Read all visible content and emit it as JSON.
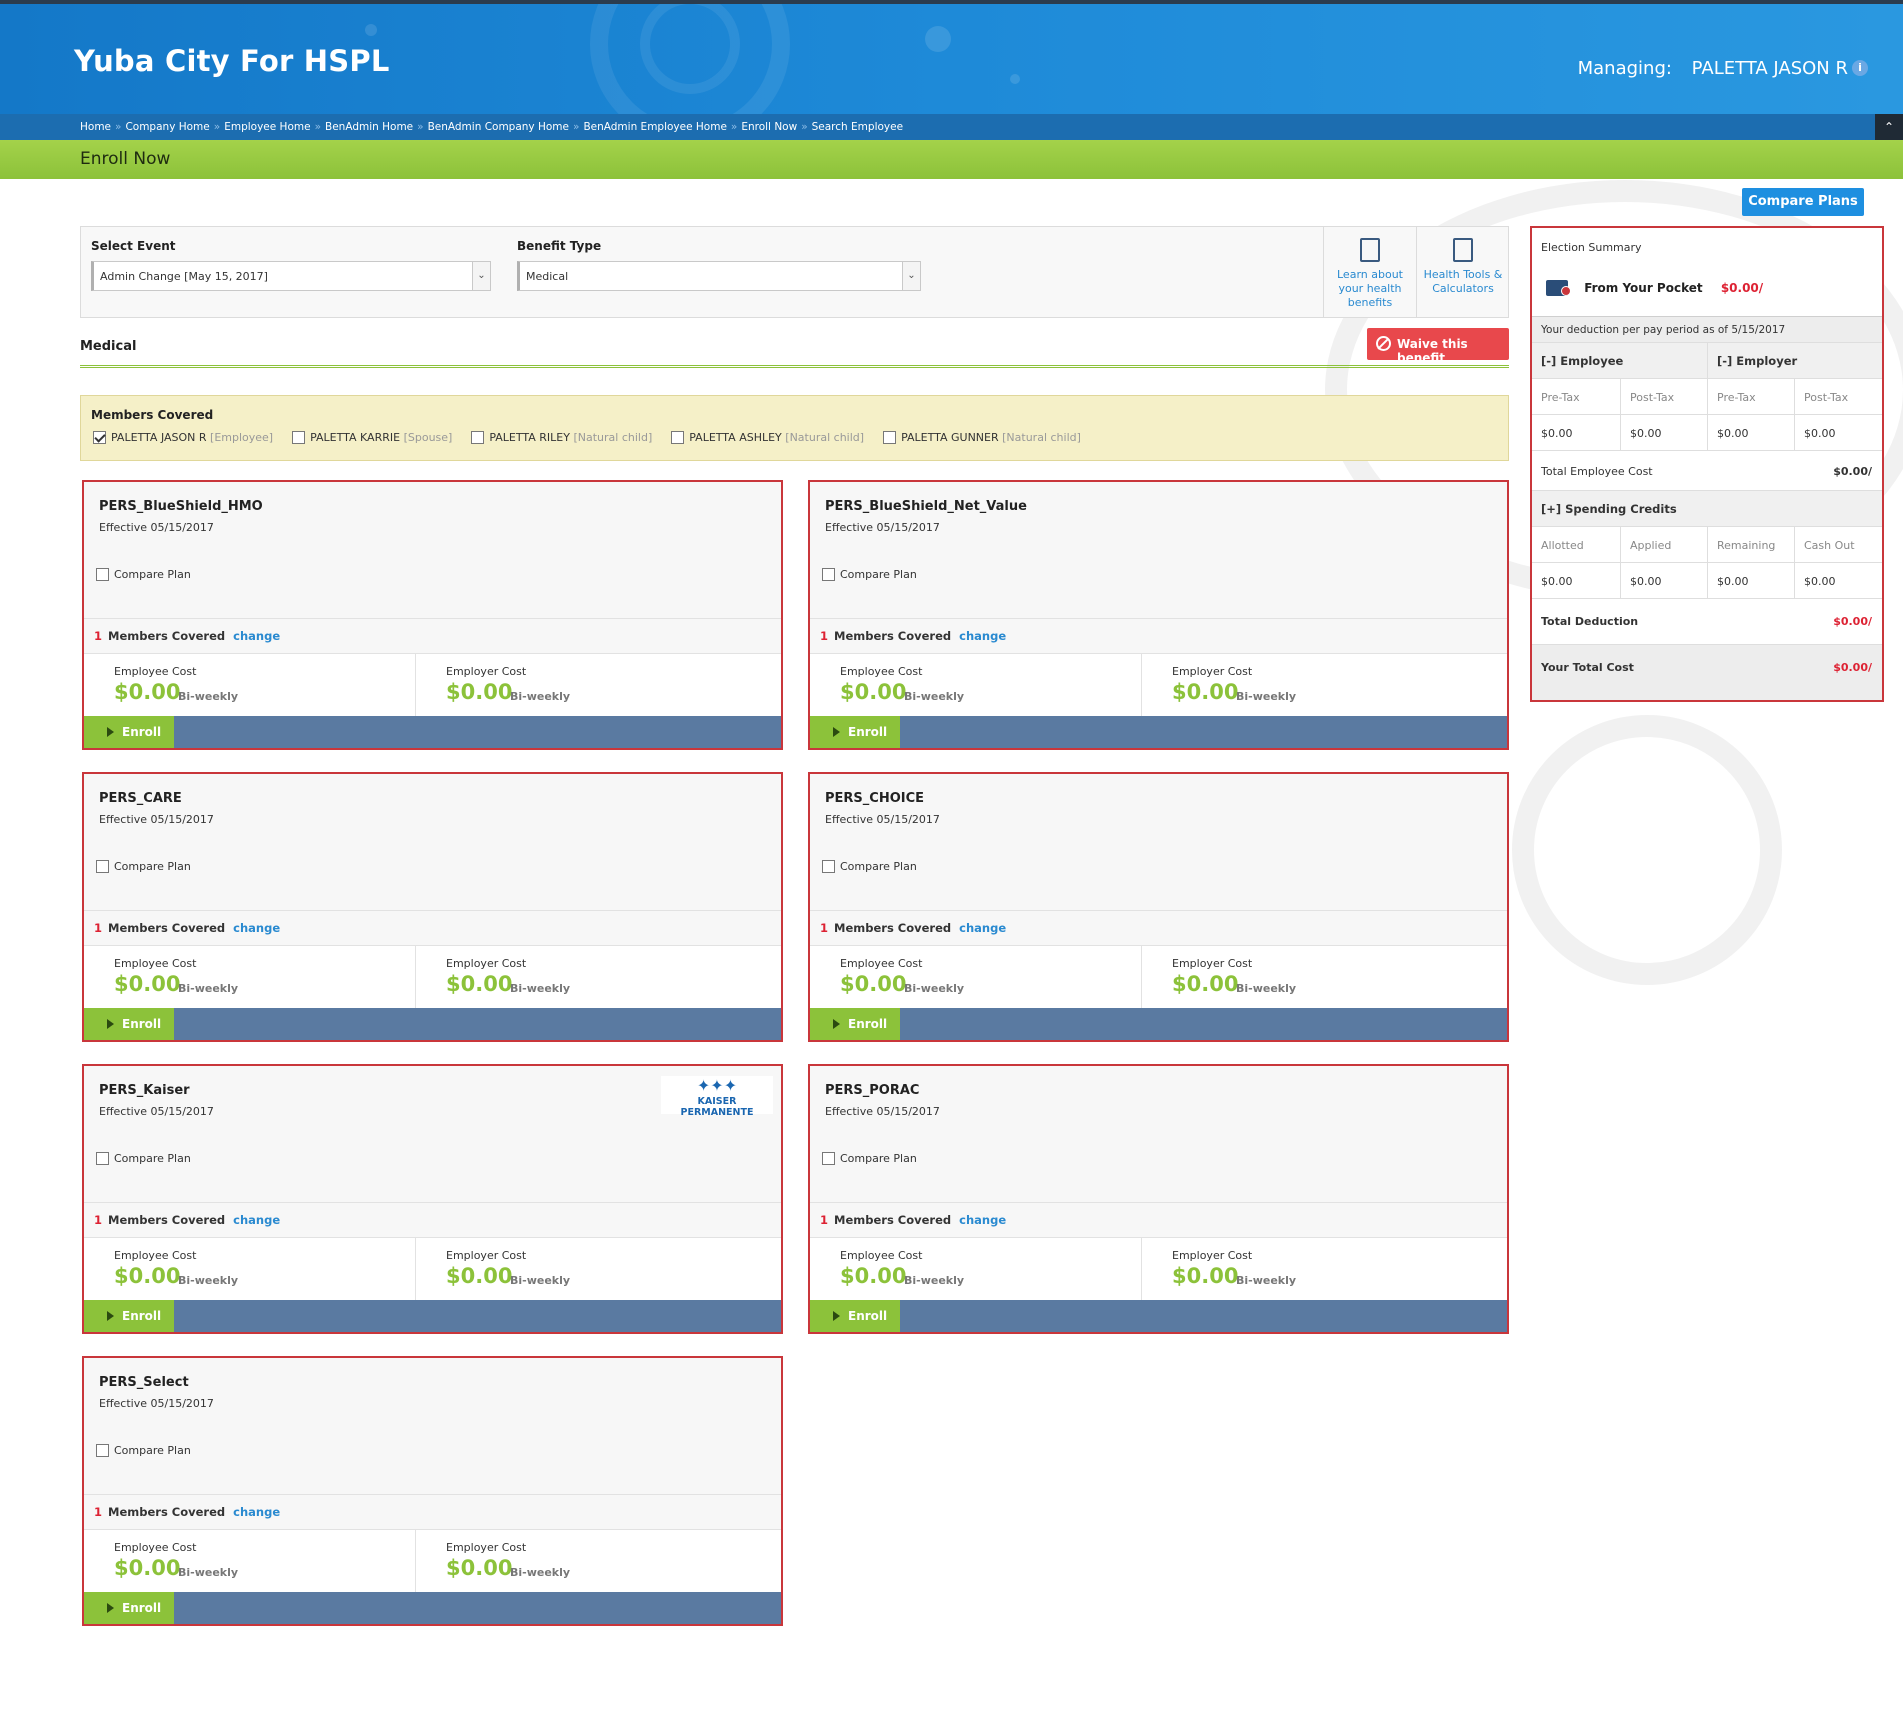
{
  "header": {
    "app_title": "Yuba City For HSPL",
    "managing_label": "Managing:",
    "managing_name": "PALETTA JASON R",
    "info_icon": "info-icon"
  },
  "breadcrumb": [
    "Home",
    "Company Home",
    "Employee Home",
    "BenAdmin Home",
    "BenAdmin Company Home",
    "BenAdmin Employee Home",
    "Enroll Now",
    "Search Employee"
  ],
  "page_title": "Enroll Now",
  "compare_plans_label": "Compare Plans",
  "select_event": {
    "label": "Select Event",
    "value": "Admin Change [May 15, 2017]"
  },
  "benefit_type": {
    "label": "Benefit Type",
    "value": "Medical"
  },
  "tools": {
    "learn": {
      "l1": "Learn about",
      "l2": "your health",
      "l3": "benefits"
    },
    "calc": {
      "l1": "Health Tools &",
      "l2": "Calculators"
    }
  },
  "section_title": "Medical",
  "waive_label": "Waive this benefit",
  "members_covered": {
    "title": "Members Covered",
    "members": [
      {
        "name": "PALETTA JASON R",
        "relation": "[Employee]",
        "checked": true
      },
      {
        "name": "PALETTA KARRIE",
        "relation": "[Spouse]",
        "checked": false
      },
      {
        "name": "PALETTA RILEY",
        "relation": "[Natural child]",
        "checked": false
      },
      {
        "name": "PALETTA ASHLEY",
        "relation": "[Natural child]",
        "checked": false
      },
      {
        "name": "PALETTA GUNNER",
        "relation": "[Natural child]",
        "checked": false
      }
    ]
  },
  "card_labels": {
    "compare_plan": "Compare Plan",
    "members_covered": "Members Covered",
    "change": "change",
    "employee_cost": "Employee Cost",
    "employer_cost": "Employer Cost",
    "frequency": "Bi-weekly",
    "enroll": "Enroll"
  },
  "plans": [
    {
      "name": "PERS_BlueShield_HMO",
      "effective": "Effective 05/15/2017",
      "members_count": "1",
      "employee_cost": "$0.00",
      "employer_cost": "$0.00"
    },
    {
      "name": "PERS_BlueShield_Net_Value",
      "effective": "Effective 05/15/2017",
      "members_count": "1",
      "employee_cost": "$0.00",
      "employer_cost": "$0.00"
    },
    {
      "name": "PERS_CARE",
      "effective": "Effective 05/15/2017",
      "members_count": "1",
      "employee_cost": "$0.00",
      "employer_cost": "$0.00"
    },
    {
      "name": "PERS_CHOICE",
      "effective": "Effective 05/15/2017",
      "members_count": "1",
      "employee_cost": "$0.00",
      "employer_cost": "$0.00"
    },
    {
      "name": "PERS_Kaiser",
      "effective": "Effective 05/15/2017",
      "members_count": "1",
      "employee_cost": "$0.00",
      "employer_cost": "$0.00",
      "logo_text": "KAISER PERMANENTE"
    },
    {
      "name": "PERS_PORAC",
      "effective": "Effective 05/15/2017",
      "members_count": "1",
      "employee_cost": "$0.00",
      "employer_cost": "$0.00"
    },
    {
      "name": "PERS_Select",
      "effective": "Effective 05/15/2017",
      "members_count": "1",
      "employee_cost": "$0.00",
      "employer_cost": "$0.00"
    }
  ],
  "summary": {
    "title": "Election Summary",
    "from_pocket_label": "From Your Pocket",
    "from_pocket_value": "$0.00/",
    "deduction_note": "Your deduction per pay period as of 5/15/2017",
    "employee_header": "[-] Employee",
    "employer_header": "[-] Employer",
    "pre_tax": "Pre-Tax",
    "post_tax": "Post-Tax",
    "emp_pre": "$0.00",
    "emp_post": "$0.00",
    "er_pre": "$0.00",
    "er_post": "$0.00",
    "total_employee_cost_label": "Total Employee Cost",
    "total_employee_cost_value": "$0.00/",
    "spending_credits": "[+] Spending Credits",
    "allotted": "Allotted",
    "applied": "Applied",
    "remaining": "Remaining",
    "cash_out": "Cash Out",
    "allotted_v": "$0.00",
    "applied_v": "$0.00",
    "remaining_v": "$0.00",
    "cash_out_v": "$0.00",
    "total_deduction_label": "Total Deduction",
    "total_deduction_value": "$0.00/",
    "total_cost_label": "Your Total Cost",
    "total_cost_value": "$0.00/"
  }
}
